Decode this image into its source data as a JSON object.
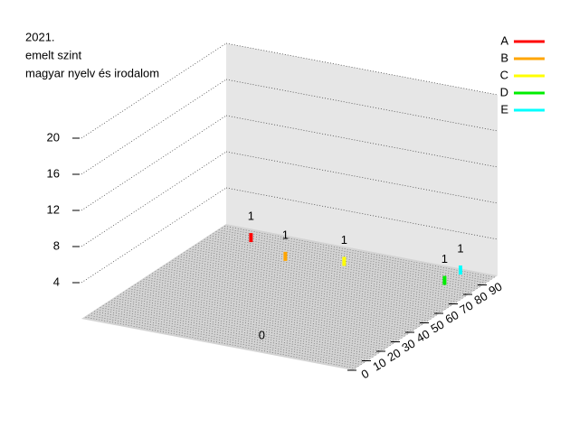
{
  "chart_data": {
    "type": "bar3d",
    "title": [
      "2021.",
      "emelt szint",
      "magyar nyelv és irodalom"
    ],
    "xlim": [
      0,
      100
    ],
    "xticks": [
      0,
      10,
      20,
      30,
      40,
      50,
      60,
      70,
      80,
      90
    ],
    "ylim": [
      0,
      1
    ],
    "zlim": [
      0,
      20
    ],
    "zticks": [
      4,
      8,
      12,
      16,
      20
    ],
    "series": [
      {
        "name": "A",
        "color": "#ff0000",
        "x": [
          89
        ],
        "y": [
          0.85
        ],
        "values": [
          1
        ]
      },
      {
        "name": "B",
        "color": "#ffa500",
        "x": [
          79
        ],
        "y": [
          0.67
        ],
        "values": [
          1
        ]
      },
      {
        "name": "C",
        "color": "#ffff00",
        "x": [
          84
        ],
        "y": [
          0.48
        ],
        "values": [
          1
        ]
      },
      {
        "name": "D",
        "color": "#00ee00",
        "x": [
          84
        ],
        "y": [
          0.11
        ],
        "values": [
          1
        ]
      },
      {
        "name": "E",
        "color": "#00ffff",
        "x": [
          95
        ],
        "y": [
          0.11
        ],
        "values": [
          1
        ]
      }
    ],
    "annotations": [
      {
        "text": "0",
        "x": 14,
        "y": 0.41
      }
    ],
    "legend": "top-right",
    "grid": true
  }
}
